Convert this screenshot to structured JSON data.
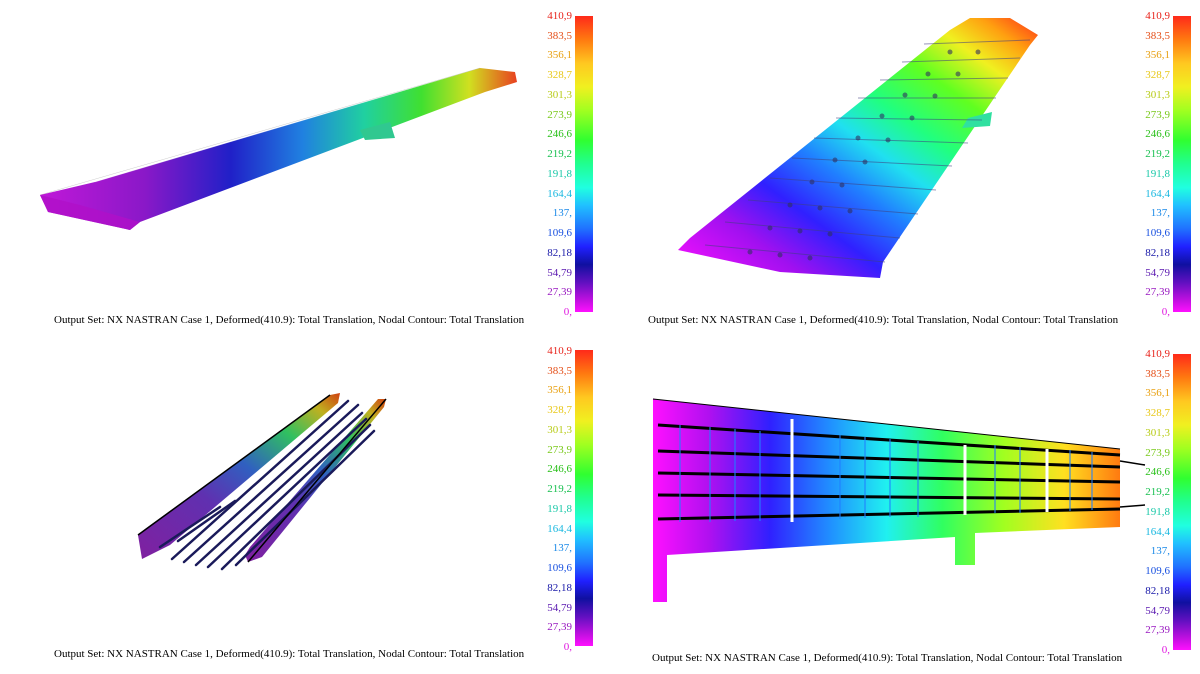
{
  "caption": "Output Set: NX NASTRAN Case 1, Deformed(410.9): Total Translation, Nodal Contour: Total Translation",
  "scale": {
    "labels": [
      "410,9",
      "383,5",
      "356,1",
      "328,7",
      "301,3",
      "273,9",
      "246,6",
      "219,2",
      "191,8",
      "164,4",
      "137,",
      "109,6",
      "82,18",
      "54,79",
      "27,39",
      "0,"
    ],
    "label_colors": [
      "#e8221a",
      "#e5501a",
      "#e8a010",
      "#e8c818",
      "#b8cc18",
      "#78c818",
      "#28c018",
      "#18c050",
      "#18c8a8",
      "#18b8e0",
      "#1888e8",
      "#1850e0",
      "#1818a8",
      "#5a18b0",
      "#9818c0",
      "#e018e0"
    ],
    "gradient": [
      "#ff2a1a",
      "#ff7a10",
      "#ffc820",
      "#f0f020",
      "#a0ff20",
      "#30ff30",
      "#20ff90",
      "#20ffe0",
      "#20c0ff",
      "#2070ff",
      "#2020ff",
      "#1010a0",
      "#6010c0",
      "#c010e0",
      "#ff10ff"
    ]
  },
  "panels": [
    {
      "id": "top-left"
    },
    {
      "id": "top-right"
    },
    {
      "id": "bottom-left"
    },
    {
      "id": "bottom-right"
    }
  ]
}
